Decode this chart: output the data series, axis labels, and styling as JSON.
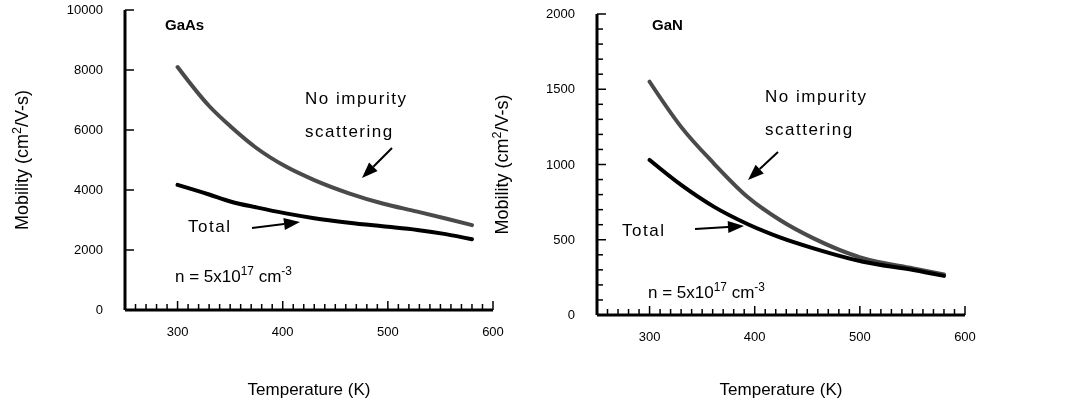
{
  "chart_data": [
    {
      "type": "line",
      "title": "GaAs",
      "xlabel": "Temperature  (K)",
      "ylabel": "Mobility (cm$^{2}$/V-s)",
      "x": [
        300,
        330,
        351,
        375,
        403,
        430,
        463,
        495,
        528,
        555,
        580
      ],
      "series": [
        {
          "color": "#4a4a4a",
          "values": [
            8100,
            6800,
            6100,
            5400,
            4780,
            4330,
            3890,
            3550,
            3280,
            3050,
            2830
          ]
        },
        {
          "color": "#000000",
          "values": [
            4170,
            3850,
            3610,
            3420,
            3220,
            3060,
            2910,
            2790,
            2670,
            2530,
            2360
          ]
        }
      ],
      "annotations": [
        "No impurity scattering",
        "Total",
        "n = 5x10$^{17}$ cm$^{-3}$"
      ],
      "xlim": [
        250,
        600
      ],
      "xticks": [
        {
          "value": 260,
          "label": null
        },
        {
          "value": 270,
          "label": null
        },
        {
          "value": 280,
          "label": null
        },
        {
          "value": 290,
          "label": null
        },
        300,
        {
          "value": 310,
          "label": null
        },
        {
          "value": 320,
          "label": null
        },
        {
          "value": 330,
          "label": null
        },
        {
          "value": 340,
          "label": null
        },
        {
          "value": 350,
          "label": null
        },
        {
          "value": 360,
          "label": null
        },
        {
          "value": 370,
          "label": null
        },
        {
          "value": 380,
          "label": null
        },
        {
          "value": 390,
          "label": null
        },
        400,
        {
          "value": 410,
          "label": null
        },
        {
          "value": 420,
          "label": null
        },
        {
          "value": 430,
          "label": null
        },
        {
          "value": 440,
          "label": null
        },
        {
          "value": 450,
          "label": null
        },
        {
          "value": 460,
          "label": null
        },
        {
          "value": 470,
          "label": null
        },
        {
          "value": 480,
          "label": null
        },
        {
          "value": 490,
          "label": null
        },
        500,
        {
          "value": 510,
          "label": null
        },
        {
          "value": 520,
          "label": null
        },
        {
          "value": 530,
          "label": null
        },
        {
          "value": 540,
          "label": null
        },
        {
          "value": 550,
          "label": null
        },
        {
          "value": 560,
          "label": null
        },
        {
          "value": 570,
          "label": null
        },
        {
          "value": 580,
          "label": null
        },
        {
          "value": 590,
          "label": null
        },
        600
      ],
      "ylim": [
        0,
        10000
      ],
      "yticks": [
        0,
        2000,
        4000,
        6000,
        8000,
        10000
      ],
      "grid": false,
      "marker": "none",
      "line_style": "solid"
    },
    {
      "type": "line",
      "title": "GaN",
      "xlabel": "Temperature  (K)",
      "ylabel": "Mobility (cm$^{2}$/V-s)",
      "x": [
        300,
        330,
        361,
        393,
        424,
        456,
        503,
        551,
        580
      ],
      "series": [
        {
          "color": "#4a4a4a",
          "values": [
            1550,
            1250,
            1008,
            786,
            631,
            509,
            377,
            310,
            270
          ]
        },
        {
          "color": "#000000",
          "values": [
            1030,
            864,
            720,
            605,
            516,
            443,
            354,
            299,
            260
          ]
        }
      ],
      "annotations": [
        "No impurity scattering",
        "Total",
        "n = 5x10$^{17}$ cm$^{-3}$"
      ],
      "xlim": [
        250,
        600
      ],
      "xticks": [
        {
          "value": 260,
          "label": null
        },
        {
          "value": 270,
          "label": null
        },
        {
          "value": 280,
          "label": null
        },
        {
          "value": 290,
          "label": null
        },
        300,
        {
          "value": 310,
          "label": null
        },
        {
          "value": 320,
          "label": null
        },
        {
          "value": 330,
          "label": null
        },
        {
          "value": 340,
          "label": null
        },
        {
          "value": 350,
          "label": null
        },
        {
          "value": 360,
          "label": null
        },
        {
          "value": 370,
          "label": null
        },
        {
          "value": 380,
          "label": null
        },
        {
          "value": 390,
          "label": null
        },
        400,
        {
          "value": 410,
          "label": null
        },
        {
          "value": 420,
          "label": null
        },
        {
          "value": 430,
          "label": null
        },
        {
          "value": 440,
          "label": null
        },
        {
          "value": 450,
          "label": null
        },
        {
          "value": 460,
          "label": null
        },
        {
          "value": 470,
          "label": null
        },
        {
          "value": 480,
          "label": null
        },
        {
          "value": 490,
          "label": null
        },
        500,
        {
          "value": 510,
          "label": null
        },
        {
          "value": 520,
          "label": null
        },
        {
          "value": 530,
          "label": null
        },
        {
          "value": 540,
          "label": null
        },
        {
          "value": 550,
          "label": null
        },
        {
          "value": 560,
          "label": null
        },
        {
          "value": 570,
          "label": null
        },
        {
          "value": 580,
          "label": null
        },
        {
          "value": 590,
          "label": null
        },
        600
      ],
      "ylim": [
        0,
        2000
      ],
      "yticks": [
        0,
        {
          "value": 100,
          "label": null
        },
        {
          "value": 200,
          "label": null
        },
        {
          "value": 300,
          "label": null
        },
        {
          "value": 400,
          "label": null
        },
        500,
        {
          "value": 600,
          "label": null
        },
        {
          "value": 700,
          "label": null
        },
        {
          "value": 800,
          "label": null
        },
        {
          "value": 900,
          "label": null
        },
        1000,
        {
          "value": 1100,
          "label": null
        },
        {
          "value": 1200,
          "label": null
        },
        {
          "value": 1300,
          "label": null
        },
        {
          "value": 1400,
          "label": null
        },
        1500,
        {
          "value": 1600,
          "label": null
        },
        {
          "value": 1700,
          "label": null
        },
        {
          "value": 1800,
          "label": null
        },
        {
          "value": 1900,
          "label": null
        },
        2000
      ],
      "grid": false,
      "marker": "none",
      "line_style": "solid"
    }
  ]
}
